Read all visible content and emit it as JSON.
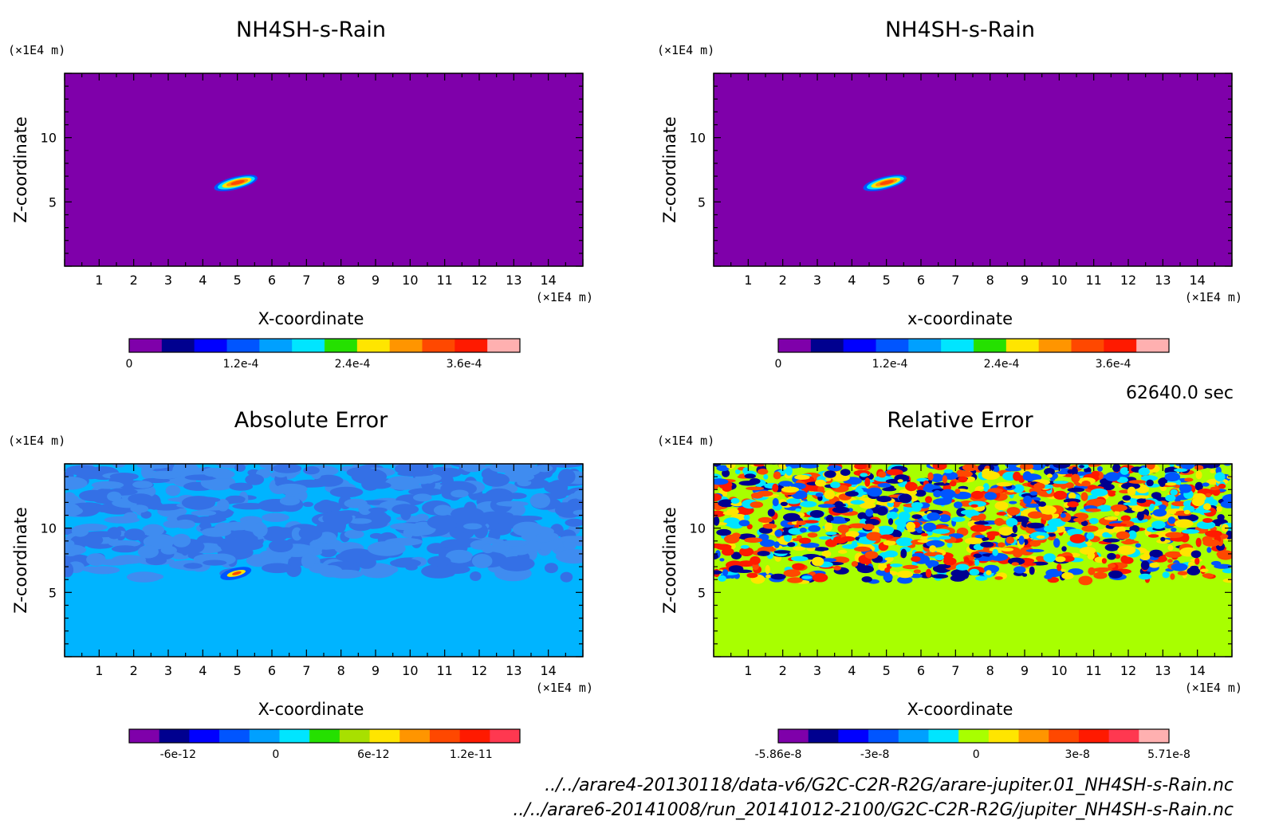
{
  "time_label": "62640.0 sec",
  "files": [
    "../../arare4-20130118/data-v6/G2C-C2R-R2G/arare-jupiter.01_NH4SH-s-Rain.nc",
    "../../arare6-20141008/run_20141012-2100/G2C-C2R-R2G/jupiter_NH4SH-s-Rain.nc"
  ],
  "chart_data": [
    {
      "id": "panel1",
      "type": "heatmap",
      "title": "NH4SH-s-Rain",
      "xlabel": "X-coordinate",
      "ylabel": "Z-coordinate",
      "x_unit": "(×1E4 m)",
      "y_unit": "(×1E4 m)",
      "xlim": [
        0,
        15
      ],
      "ylim": [
        0,
        15
      ],
      "xticks": [
        1,
        2,
        3,
        4,
        5,
        6,
        7,
        8,
        9,
        10,
        11,
        12,
        13,
        14
      ],
      "yticks": [
        5,
        10
      ],
      "field": "blob",
      "background_color": "#7f00aa",
      "feature": {
        "x": 5.0,
        "z": 6.5
      },
      "colorbar": {
        "colors": [
          "#7f00aa",
          "#00008f",
          "#0000ff",
          "#0055ff",
          "#00a0ff",
          "#00e5ff",
          "#25e000",
          "#ffe500",
          "#ff9500",
          "#ff4800",
          "#ff1a00",
          "#ffb0b0"
        ],
        "labels": [
          {
            "text": "0",
            "value": 0
          },
          {
            "text": "1.2e-4",
            "value": 0.00012
          },
          {
            "text": "2.4e-4",
            "value": 0.00024
          },
          {
            "text": "3.6e-4",
            "value": 0.00036
          }
        ],
        "min": 0,
        "max": 0.00042
      }
    },
    {
      "id": "panel2",
      "type": "heatmap",
      "title": "NH4SH-s-Rain",
      "xlabel": "x-coordinate",
      "ylabel": "Z-coordinate",
      "x_unit": "(×1E4 m)",
      "y_unit": "(×1E4 m)",
      "xlim": [
        0,
        15
      ],
      "ylim": [
        0,
        15
      ],
      "xticks": [
        1,
        2,
        3,
        4,
        5,
        6,
        7,
        8,
        9,
        10,
        11,
        12,
        13,
        14
      ],
      "yticks": [
        5,
        10
      ],
      "field": "blob",
      "background_color": "#7f00aa",
      "feature": {
        "x": 5.0,
        "z": 6.5
      },
      "colorbar": {
        "colors": [
          "#7f00aa",
          "#00008f",
          "#0000ff",
          "#0055ff",
          "#00a0ff",
          "#00e5ff",
          "#25e000",
          "#ffe500",
          "#ff9500",
          "#ff4800",
          "#ff1a00",
          "#ffb0b0"
        ],
        "labels": [
          {
            "text": "0",
            "value": 0
          },
          {
            "text": "1.2e-4",
            "value": 0.00012
          },
          {
            "text": "2.4e-4",
            "value": 0.00024
          },
          {
            "text": "3.6e-4",
            "value": 0.00036
          }
        ],
        "min": 0,
        "max": 0.00042
      }
    },
    {
      "id": "panel3",
      "type": "heatmap",
      "title": "Absolute Error",
      "xlabel": "X-coordinate",
      "ylabel": "Z-coordinate",
      "x_unit": "(×1E4 m)",
      "y_unit": "(×1E4 m)",
      "xlim": [
        0,
        15
      ],
      "ylim": [
        0,
        15
      ],
      "xticks": [
        1,
        2,
        3,
        4,
        5,
        6,
        7,
        8,
        9,
        10,
        11,
        12,
        13,
        14
      ],
      "yticks": [
        5,
        10
      ],
      "field": "abs_noise",
      "background_color": "#00b4ff",
      "noise_colors": [
        "#3f8cf0",
        "#3470e6"
      ],
      "noise_zmin": 6.5,
      "feature": {
        "x": 5.0,
        "z": 6.5
      },
      "colorbar": {
        "colors": [
          "#7f00aa",
          "#00008f",
          "#0000ff",
          "#0055ff",
          "#00a0ff",
          "#00e5ff",
          "#25e000",
          "#a8e000",
          "#ffe500",
          "#ff9500",
          "#ff4800",
          "#ff1a00",
          "#ff3850"
        ],
        "labels": [
          {
            "text": "-6e-12",
            "value": -6e-12
          },
          {
            "text": "0",
            "value": 0
          },
          {
            "text": "6e-12",
            "value": 6e-12
          },
          {
            "text": "1.2e-11",
            "value": 1.2e-11
          }
        ],
        "min": -9e-12,
        "max": 1.5e-11
      }
    },
    {
      "id": "panel4",
      "type": "heatmap",
      "title": "Relative Error",
      "xlabel": "X-coordinate",
      "ylabel": "Z-coordinate",
      "x_unit": "(×1E4 m)",
      "y_unit": "(×1E4 m)",
      "xlim": [
        0,
        15
      ],
      "ylim": [
        0,
        15
      ],
      "xticks": [
        1,
        2,
        3,
        4,
        5,
        6,
        7,
        8,
        9,
        10,
        11,
        12,
        13,
        14
      ],
      "yticks": [
        5,
        10
      ],
      "field": "rel_noise",
      "background_color": "#a8ff00",
      "noise_colors": [
        "#00e5ff",
        "#0055ff",
        "#ff4800",
        "#ffe500",
        "#00008f",
        "#ff1a00"
      ],
      "noise_zmin": 6.0,
      "colorbar": {
        "colors": [
          "#7f00aa",
          "#00008f",
          "#0000ff",
          "#0055ff",
          "#00a0ff",
          "#00e5ff",
          "#a8ff00",
          "#ffe500",
          "#ff9500",
          "#ff4800",
          "#ff1a00",
          "#ff3850",
          "#ffb0b0"
        ],
        "labels": [
          {
            "text": "-5.86e-8",
            "value": -5.86e-08
          },
          {
            "text": "-3e-8",
            "value": -3e-08
          },
          {
            "text": "0",
            "value": 0
          },
          {
            "text": "3e-8",
            "value": 3e-08
          },
          {
            "text": "5.71e-8",
            "value": 5.71e-08
          }
        ],
        "min": -5.86e-08,
        "max": 5.71e-08
      }
    }
  ]
}
